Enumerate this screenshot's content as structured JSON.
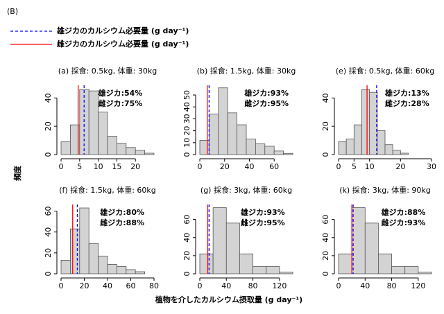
{
  "figure": {
    "label": "(B)",
    "legend": [
      {
        "name": "雄ジカのカルシウム必要量 (g day⁻¹)",
        "color": "#0000ff",
        "dashed": true
      },
      {
        "name": "雌ジカのカルシウム必要量 (g day⁻¹)",
        "color": "#ff0000",
        "dashed": false
      }
    ],
    "ylabel": "頻度",
    "xlabel": "植物を介したカルシウム摂取量 (g day⁻¹)"
  },
  "chart_data": [
    {
      "type": "histogram",
      "title": "(a) 採食: 0.5kg, 体重: 30kg",
      "color": "#d3d3d3",
      "bins": [
        0,
        2.5,
        5,
        7.5,
        10,
        12.5,
        15,
        17.5,
        20,
        22.5,
        25
      ],
      "values": [
        9,
        21,
        46,
        45,
        30,
        13,
        8,
        5,
        3,
        1
      ],
      "xlim": [
        0,
        25
      ],
      "xticks": [
        0,
        5,
        10,
        15,
        20
      ],
      "ylim": [
        0,
        48
      ],
      "yticks": [
        0,
        20,
        40
      ],
      "requirements": [
        6.2,
        4.6
      ],
      "annotations": [
        {
          "text": "雄ジカ:54%",
          "color": "#0000ff"
        },
        {
          "text": "雌ジカ:75%",
          "color": "#ff0000"
        }
      ]
    },
    {
      "type": "histogram",
      "title": "(b) 採食: 1.5kg, 体重: 30kg",
      "color": "#d3d3d3",
      "bins": [
        0,
        7.5,
        15,
        22.5,
        30,
        37.5,
        45,
        52.5,
        60,
        67.5,
        75
      ],
      "values": [
        12,
        34,
        56,
        35,
        25,
        13,
        9,
        7,
        3,
        1
      ],
      "xlim": [
        0,
        75
      ],
      "xticks": [
        0,
        20,
        40,
        60
      ],
      "ylim": [
        0,
        57
      ],
      "yticks": [
        0,
        10,
        20,
        30,
        40,
        50
      ],
      "requirements": [
        7.5,
        6
      ],
      "annotations": [
        {
          "text": "雄ジカ:93%",
          "color": "#0000ff"
        },
        {
          "text": "雌ジカ:95%",
          "color": "#ff0000"
        }
      ]
    },
    {
      "type": "histogram",
      "title": "(e) 採食: 0.5kg, 体重: 60kg",
      "color": "#d3d3d3",
      "bins": [
        0,
        2.5,
        5,
        7.5,
        10,
        12.5,
        15,
        17.5,
        20,
        22.5
      ],
      "values": [
        9,
        11,
        21,
        46,
        44,
        17,
        7,
        3,
        1
      ],
      "xlim": [
        0,
        30
      ],
      "xticks": [
        0,
        5,
        10,
        20,
        30
      ],
      "ylim": [
        0,
        48
      ],
      "yticks": [
        0,
        20,
        40
      ],
      "requirements": [
        12.3,
        9.2
      ],
      "annotations": [
        {
          "text": "雄ジカ:13%",
          "color": "#0000ff"
        },
        {
          "text": "雌ジカ:28%",
          "color": "#ff0000"
        }
      ]
    },
    {
      "type": "histogram",
      "title": "(f) 採食: 1.5kg, 体重: 60kg",
      "color": "#d3d3d3",
      "bins": [
        0,
        8,
        16,
        24,
        32,
        40,
        48,
        56,
        64,
        72
      ],
      "values": [
        13,
        43,
        63,
        29,
        17,
        9,
        7,
        4,
        2
      ],
      "xlim": [
        0,
        80
      ],
      "xticks": [
        0,
        20,
        40,
        60,
        80
      ],
      "ylim": [
        0,
        65
      ],
      "yticks": [
        0,
        20,
        40,
        60
      ],
      "requirements": [
        14,
        10
      ],
      "annotations": [
        {
          "text": "雄ジカ:80%",
          "color": "#0000ff"
        },
        {
          "text": "雌ジカ:88%",
          "color": "#ff0000"
        }
      ]
    },
    {
      "type": "histogram",
      "title": "(g) 採食: 3kg, 体重: 60kg",
      "color": "#d3d3d3",
      "bins": [
        0,
        20,
        40,
        60,
        80,
        100,
        120,
        140
      ],
      "values": [
        22,
        73,
        56,
        22,
        8,
        8,
        2
      ],
      "xlim": [
        0,
        140
      ],
      "xticks": [
        0,
        40,
        80,
        120
      ],
      "ylim": [
        0,
        75
      ],
      "yticks": [
        0,
        20,
        40,
        60
      ],
      "requirements": [
        14,
        12
      ],
      "annotations": [
        {
          "text": "雄ジカ:93%",
          "color": "#0000ff"
        },
        {
          "text": "雌ジカ:95%",
          "color": "#ff0000"
        }
      ]
    },
    {
      "type": "histogram",
      "title": "(k) 採食: 3kg, 体重: 90kg",
      "color": "#d3d3d3",
      "bins": [
        0,
        20,
        40,
        60,
        80,
        100,
        120,
        140
      ],
      "values": [
        22,
        73,
        56,
        22,
        8,
        8,
        2
      ],
      "xlim": [
        0,
        140
      ],
      "xticks": [
        0,
        40,
        80,
        120
      ],
      "ylim": [
        0,
        75
      ],
      "yticks": [
        0,
        20,
        40,
        60
      ],
      "requirements": [
        22,
        20
      ],
      "annotations": [
        {
          "text": "雄ジカ:88%",
          "color": "#0000ff"
        },
        {
          "text": "雌ジカ:93%",
          "color": "#ff0000"
        }
      ]
    }
  ]
}
